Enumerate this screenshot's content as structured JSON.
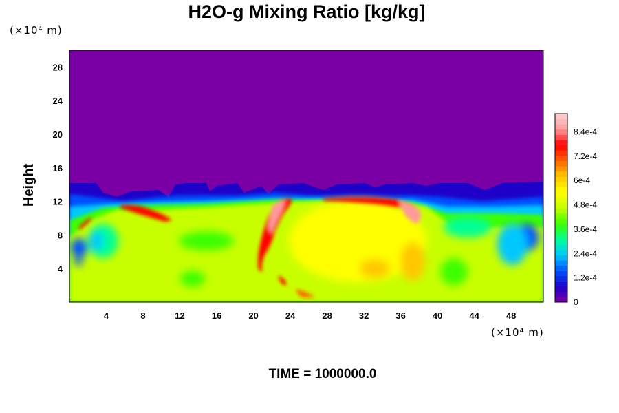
{
  "chart_data": {
    "type": "heatmap",
    "title": "H2O-g Mixing Ratio [kg/kg]",
    "ylabel": "Height",
    "xlabel": "",
    "x_unit": "(×10⁴ m)",
    "y_unit": "(×10⁴ m)",
    "xlim": [
      0,
      51.5
    ],
    "ylim": [
      0,
      30
    ],
    "x_ticks": [
      "4",
      "8",
      "12",
      "16",
      "20",
      "24",
      "28",
      "32",
      "36",
      "40",
      "44",
      "48"
    ],
    "y_ticks": [
      "4",
      "8",
      "12",
      "16",
      "20",
      "24",
      "28"
    ],
    "colorbar": {
      "range": [
        0,
        0.00093
      ],
      "ticks": [
        "0",
        "1.2e-4",
        "2.4e-4",
        "3.6e-4",
        "4.8e-4",
        "6e-4",
        "7.2e-4",
        "8.4e-4"
      ],
      "tick_values": [
        0,
        0.00012,
        0.00024,
        0.00036,
        0.00048,
        0.0006,
        0.00072,
        0.00084
      ],
      "colors": [
        "#7a00a6",
        "#1e00c8",
        "#0050ff",
        "#00c8ff",
        "#00ff96",
        "#3cff00",
        "#c8ff00",
        "#ffff00",
        "#ffc800",
        "#ff6400",
        "#ff0000",
        "#ff9a9a",
        "#ffd0d0"
      ]
    },
    "field_summary": {
      "dry_layer_above_height": 14,
      "dry_layer_value": 0,
      "moist_layer_typical_value": 0.0006
    },
    "footer": "TIME = 1000000.0"
  }
}
